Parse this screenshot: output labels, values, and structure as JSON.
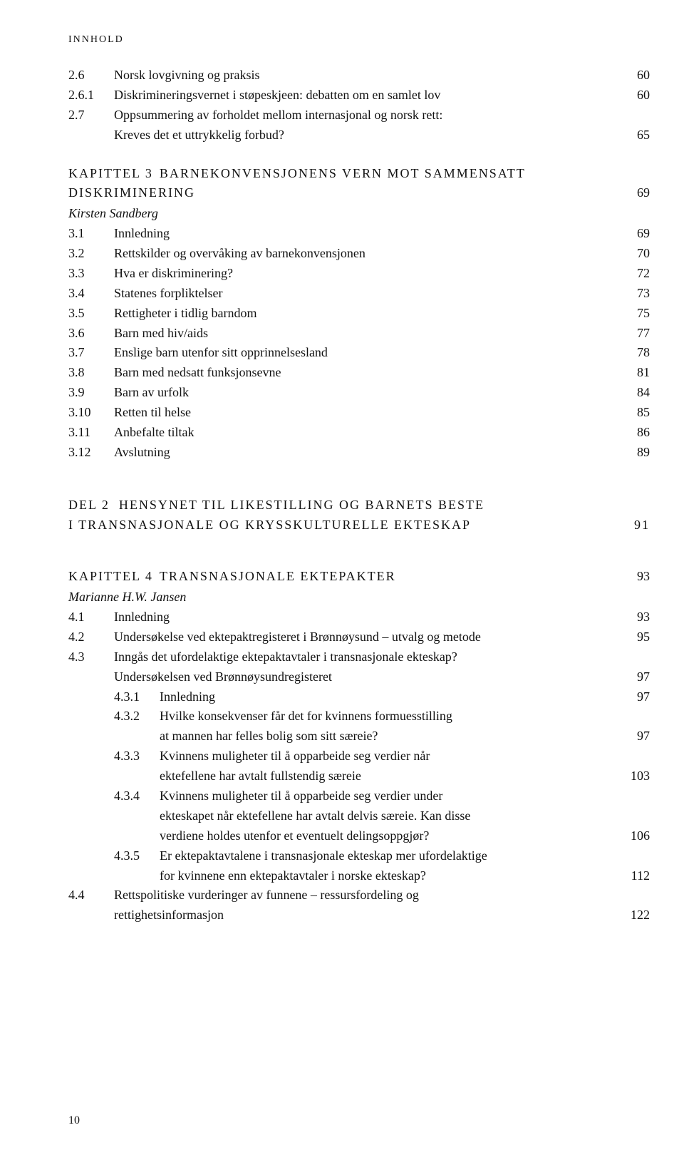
{
  "runningHead": "INNHOLD",
  "pageNumber": "10",
  "section2": {
    "items": [
      {
        "num": "2.6",
        "title": "Norsk lovgivning og praksis",
        "page": "60",
        "leader": true
      },
      {
        "num": "2.6.1",
        "title": "Diskrimineringsvernet i støpeskjeen: debatten om en samlet lov",
        "page": "60",
        "leader": true,
        "leaderBlank": false,
        "tightLeader": true
      },
      {
        "num": "2.7",
        "title": "Oppsummering av forholdet mellom internasjonal og norsk rett:",
        "page": "",
        "leader": false,
        "noPage": true
      },
      {
        "num": "",
        "title": "Kreves det et uttrykkelig forbud?",
        "page": "65",
        "leader": true,
        "continuation": true
      }
    ]
  },
  "chapter3": {
    "label": "KAPITTEL 3",
    "title": "BARNEKONVENSJONENS VERN MOT SAMMENSATT",
    "title2": "DISKRIMINERING",
    "page": "69",
    "author": "Kirsten Sandberg",
    "items": [
      {
        "num": "3.1",
        "title": "Innledning",
        "page": "69"
      },
      {
        "num": "3.2",
        "title": "Rettskilder og overvåking av barnekonvensjonen",
        "page": "70"
      },
      {
        "num": "3.3",
        "title": "Hva er diskriminering?",
        "page": "72"
      },
      {
        "num": "3.4",
        "title": "Statenes forpliktelser",
        "page": "73"
      },
      {
        "num": "3.5",
        "title": "Rettigheter i tidlig barndom",
        "page": "75"
      },
      {
        "num": "3.6",
        "title": "Barn med hiv/aids",
        "page": "77"
      },
      {
        "num": "3.7",
        "title": "Enslige barn utenfor sitt opprinnelsesland",
        "page": "78"
      },
      {
        "num": "3.8",
        "title": "Barn med nedsatt funksjonsevne",
        "page": "81"
      },
      {
        "num": "3.9",
        "title": "Barn av urfolk",
        "page": "84"
      },
      {
        "num": "3.10",
        "title": "Retten til helse",
        "page": "85"
      },
      {
        "num": "3.11",
        "title": "Anbefalte tiltak",
        "page": "86"
      },
      {
        "num": "3.12",
        "title": "Avslutning",
        "page": "89"
      }
    ]
  },
  "part2": {
    "label": "DEL 2",
    "title1": "HENSYNET TIL LIKESTILLING OG BARNETS BESTE",
    "title2": "I TRANSNASJONALE OG KRYSSKULTURELLE EKTESKAP",
    "page": "91"
  },
  "chapter4": {
    "label": "KAPITTEL 4",
    "title": "TRANSNASJONALE EKTEPAKTER",
    "page": "93",
    "author": "Marianne H.W. Jansen",
    "items": [
      {
        "num": "4.1",
        "title": "Innledning",
        "page": "93"
      },
      {
        "num": "4.2",
        "title": "Undersøkelse ved ektepaktregisteret i Brønnøysund – utvalg og metode",
        "page": "95",
        "tight": true
      },
      {
        "num": "4.3",
        "title": "Inngås det ufordelaktige ektepaktavtaler i transnasjonale ekteskap?",
        "page": "",
        "noPage": true
      },
      {
        "num": "",
        "title": "Undersøkelsen ved Brønnøysundregisteret",
        "page": "97",
        "continuation": true
      }
    ],
    "subitems43": [
      {
        "num": "4.3.1",
        "title": "Innledning",
        "page": "97"
      },
      {
        "num": "4.3.2",
        "title": "Hvilke konsekvenser får det for kvinnens formuesstilling",
        "page": "",
        "noPage": true
      },
      {
        "num": "",
        "title": "at mannen har felles bolig som sitt særeie?",
        "page": "97",
        "continuation": true
      },
      {
        "num": "4.3.3",
        "title": "Kvinnens muligheter til å opparbeide seg verdier når",
        "page": "",
        "noPage": true
      },
      {
        "num": "",
        "title": "ektefellene har avtalt fullstendig særeie",
        "page": "103",
        "continuation": true
      },
      {
        "num": "4.3.4",
        "title": "Kvinnens muligheter til å opparbeide seg verdier under",
        "page": "",
        "noPage": true
      },
      {
        "num": "",
        "title": "ekteskapet når ektefellene har avtalt delvis særeie. Kan disse",
        "page": "",
        "noPage": true,
        "continuation": true
      },
      {
        "num": "",
        "title": "verdiene holdes utenfor et eventuelt delingsoppgjør?",
        "page": "106",
        "continuation": true
      },
      {
        "num": "4.3.5",
        "title": "Er ektepaktavtalene i transnasjonale ekteskap mer ufordelaktige",
        "page": "",
        "noPage": true
      },
      {
        "num": "",
        "title": "for kvinnene enn ektepaktavtaler i norske ekteskap?",
        "page": "112",
        "continuation": true
      }
    ],
    "item44a": {
      "num": "4.4",
      "title": "Rettspolitiske vurderinger av funnene – ressursfordeling og"
    },
    "item44b": {
      "title": "rettighetsinformasjon",
      "page": "122"
    }
  }
}
